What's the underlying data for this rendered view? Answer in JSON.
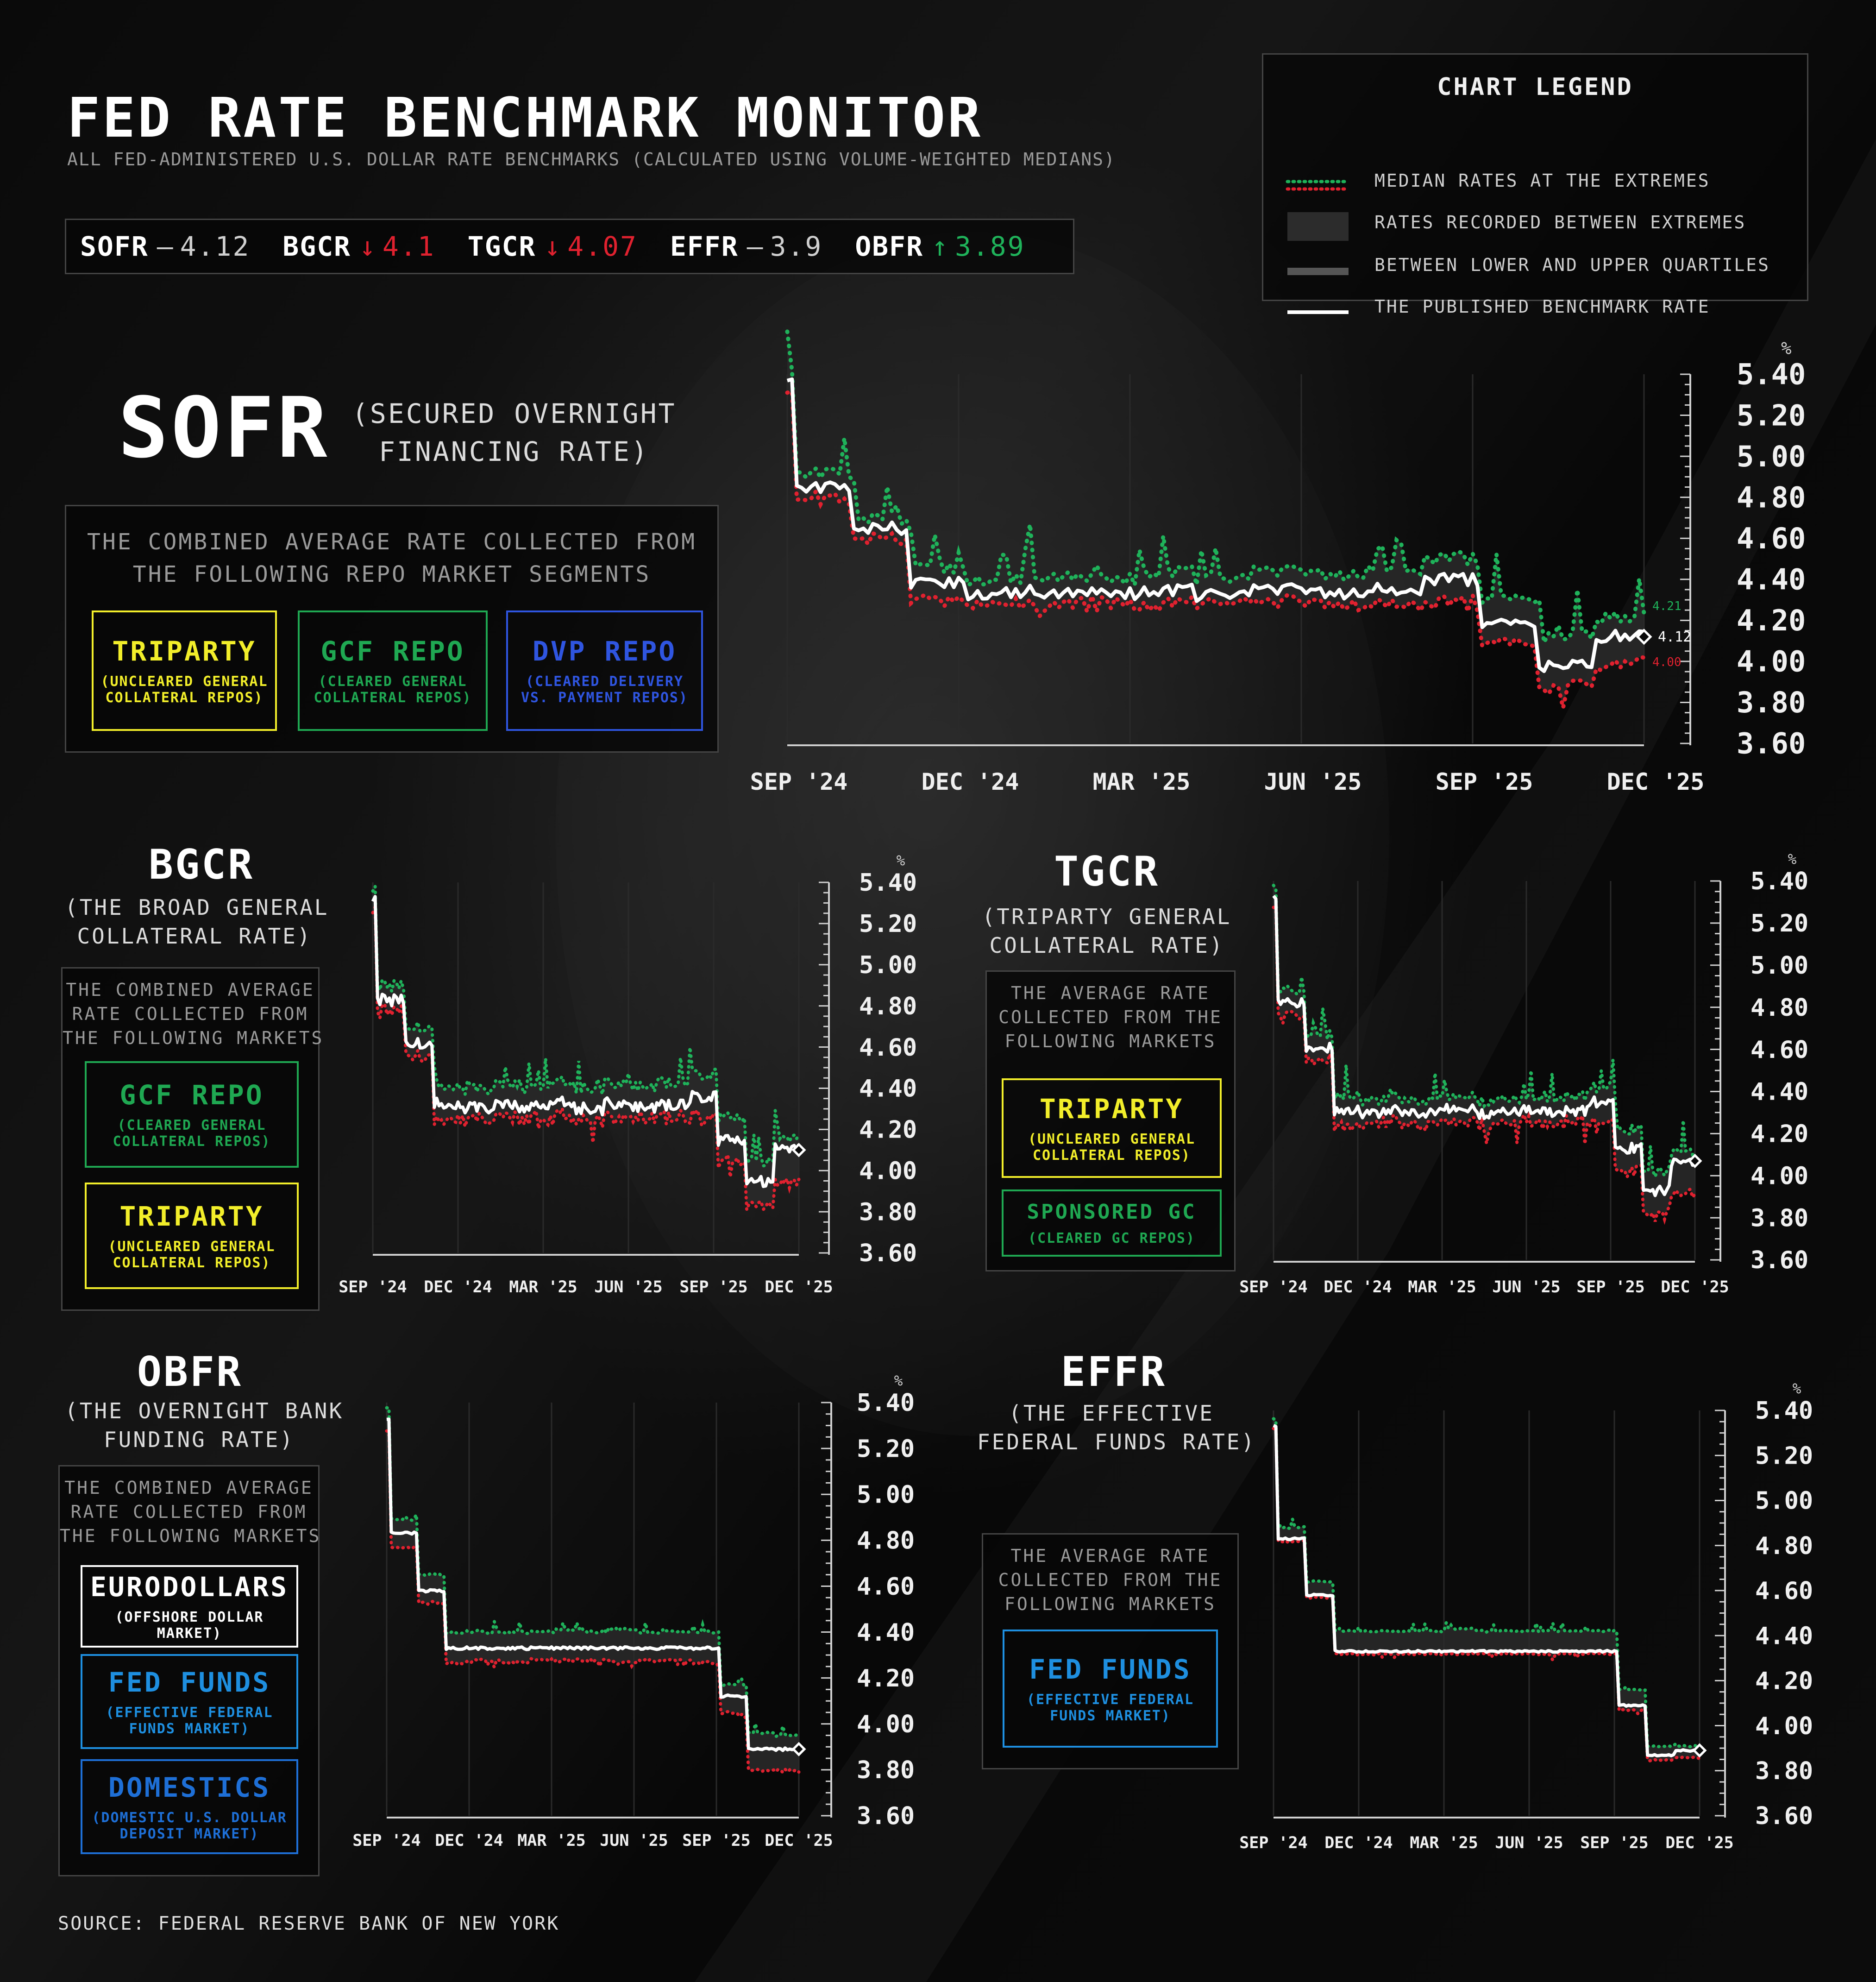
{
  "header": {
    "title": "FED RATE BENCHMARK MONITOR",
    "subtitle": "ALL FED-ADMINISTERED U.S. DOLLAR RATE BENCHMARKS (CALCULATED USING VOLUME-WEIGHTED MEDIANS)"
  },
  "ticker": [
    {
      "name": "SOFR",
      "arrow": "–",
      "value": "4.12",
      "color": "#cfcfcf"
    },
    {
      "name": "BGCR",
      "arrow": "↓",
      "value": "4.1",
      "color": "#e0212f"
    },
    {
      "name": "TGCR",
      "arrow": "↓",
      "value": "4.07",
      "color": "#e0212f"
    },
    {
      "name": "EFFR",
      "arrow": "–",
      "value": "3.9",
      "color": "#cfcfcf"
    },
    {
      "name": "OBFR",
      "arrow": "↑",
      "value": "3.89",
      "color": "#1fb25a"
    }
  ],
  "legend": {
    "title": "CHART LEGEND",
    "items": [
      {
        "key": "extremes",
        "label": "MEDIAN RATES AT THE EXTREMES"
      },
      {
        "key": "range",
        "label": "RATES RECORDED BETWEEN EXTREMES"
      },
      {
        "key": "quartiles",
        "label": "BETWEEN LOWER AND UPPER QUARTILES"
      },
      {
        "key": "published",
        "label": "THE PUBLISHED BENCHMARK RATE"
      }
    ]
  },
  "colors": {
    "upper": "#1fb25a",
    "lower": "#e0212f",
    "benchmark": "#ffffff",
    "triparty": "#f2ee2a",
    "gcf": "#1fa852",
    "dvp": "#2f55e0",
    "fedfunds": "#1e8fe0",
    "domestics": "#1e6fd6",
    "eurodollars": "#ffffff",
    "sponsored": "#1fa852"
  },
  "sections": {
    "sofr": {
      "name": "SOFR",
      "desc_lines": [
        "(SECURED OVERNIGHT",
        "FINANCING RATE)"
      ],
      "panel_lines": [
        "THE COMBINED AVERAGE RATE COLLECTED FROM",
        "THE FOLLOWING REPO MARKET SEGMENTS"
      ],
      "markets": [
        {
          "name": "TRIPARTY",
          "sub": [
            "(UNCLEARED GENERAL",
            "COLLATERAL REPOS)"
          ],
          "color": "#f2ee2a"
        },
        {
          "name": "GCF REPO",
          "sub": [
            "(CLEARED GENERAL",
            "COLLATERAL REPOS)"
          ],
          "color": "#1fa852"
        },
        {
          "name": "DVP REPO",
          "sub": [
            "(CLEARED DELIVERY",
            "VS. PAYMENT REPOS)"
          ],
          "color": "#2f55e0"
        }
      ]
    },
    "bgcr": {
      "name": "BGCR",
      "desc_lines": [
        "(THE BROAD GENERAL",
        "COLLATERAL RATE)"
      ],
      "panel_lines": [
        "THE COMBINED AVERAGE",
        "RATE COLLECTED FROM",
        "THE FOLLOWING MARKETS"
      ],
      "markets": [
        {
          "name": "GCF REPO",
          "sub": [
            "(CLEARED GENERAL",
            "COLLATERAL REPOS)"
          ],
          "color": "#1fa852"
        },
        {
          "name": "TRIPARTY",
          "sub": [
            "(UNCLEARED GENERAL",
            "COLLATERAL REPOS)"
          ],
          "color": "#f2ee2a"
        }
      ]
    },
    "tgcr": {
      "name": "TGCR",
      "desc_lines": [
        "(TRIPARTY GENERAL",
        "COLLATERAL RATE)"
      ],
      "panel_lines": [
        "THE AVERAGE RATE",
        "COLLECTED FROM THE",
        "FOLLOWING MARKETS"
      ],
      "markets": [
        {
          "name": "TRIPARTY",
          "sub": [
            "(UNCLEARED GENERAL",
            "COLLATERAL REPOS)"
          ],
          "color": "#f2ee2a"
        },
        {
          "name": "SPONSORED GC",
          "sub": [
            "(CLEARED GC REPOS)"
          ],
          "color": "#1fa852"
        }
      ]
    },
    "obfr": {
      "name": "OBFR",
      "desc_lines": [
        "(THE OVERNIGHT BANK",
        "FUNDING RATE)"
      ],
      "panel_lines": [
        "THE COMBINED AVERAGE",
        "RATE COLLECTED FROM",
        "THE FOLLOWING MARKETS"
      ],
      "markets": [
        {
          "name": "EURODOLLARS",
          "sub": [
            "(OFFSHORE DOLLAR",
            "MARKET)"
          ],
          "color": "#ffffff"
        },
        {
          "name": "FED FUNDS",
          "sub": [
            "(EFFECTIVE FEDERAL",
            "FUNDS MARKET)"
          ],
          "color": "#1e8fe0"
        },
        {
          "name": "DOMESTICS",
          "sub": [
            "(DOMESTIC U.S. DOLLAR",
            "DEPOSIT MARKET)"
          ],
          "color": "#1e6fd6"
        }
      ]
    },
    "effr": {
      "name": "EFFR",
      "desc_lines": [
        "(THE EFFECTIVE",
        "FEDERAL FUNDS RATE)"
      ],
      "panel_lines": [
        "THE AVERAGE RATE",
        "COLLECTED FROM THE",
        "FOLLOWING MARKETS"
      ],
      "markets": [
        {
          "name": "FED FUNDS",
          "sub": [
            "(EFFECTIVE FEDERAL",
            "FUNDS MARKET)"
          ],
          "color": "#1e8fe0"
        }
      ]
    }
  },
  "chart_data": [
    {
      "id": "sofr",
      "type": "line",
      "unit": "%",
      "x_ticks": [
        "SEP '24",
        "DEC '24",
        "MAR '25",
        "JUN '25",
        "SEP '25",
        "DEC '25"
      ],
      "ylim": [
        3.6,
        5.4
      ],
      "y_ticks": [
        "5.40",
        "5.20",
        "5.00",
        "4.80",
        "4.60",
        "4.40",
        "4.20",
        "4.00",
        "3.80",
        "3.60"
      ],
      "x": [
        "2024-09",
        "2024-10",
        "2024-11",
        "2024-12",
        "2025-01",
        "2025-02",
        "2025-03",
        "2025-04",
        "2025-05",
        "2025-06",
        "2025-07",
        "2025-08",
        "2025-09",
        "2025-10",
        "2025-11",
        "2025-12"
      ],
      "series": [
        {
          "values": [
            5.36,
            4.85,
            4.65,
            4.38,
            4.33,
            4.34,
            4.33,
            4.35,
            4.32,
            4.35,
            4.33,
            4.35,
            4.4,
            4.18,
            3.98,
            4.12
          ]
        },
        {
          "values": [
            5.4,
            4.92,
            4.7,
            4.45,
            4.4,
            4.42,
            4.4,
            4.44,
            4.4,
            4.44,
            4.42,
            4.45,
            4.5,
            4.3,
            4.12,
            4.21
          ]
        },
        {
          "values": [
            5.31,
            4.81,
            4.62,
            4.31,
            4.3,
            4.3,
            4.3,
            4.3,
            4.29,
            4.3,
            4.29,
            4.3,
            4.3,
            4.1,
            3.9,
            4.0
          ]
        }
      ],
      "end_labels": {
        "upper": "4.21",
        "benchmark": "4.12",
        "lower": "4.00"
      }
    },
    {
      "id": "bgcr",
      "type": "line",
      "unit": "%",
      "x_ticks": [
        "SEP '24",
        "DEC '24",
        "MAR '25",
        "JUN '25",
        "SEP '25",
        "DEC '25"
      ],
      "ylim": [
        3.6,
        5.4
      ],
      "y_ticks": [
        "5.40",
        "5.20",
        "5.00",
        "4.80",
        "4.60",
        "4.40",
        "4.20",
        "4.00",
        "3.80",
        "3.60"
      ],
      "x": [
        "2024-09",
        "2024-10",
        "2024-11",
        "2024-12",
        "2025-01",
        "2025-02",
        "2025-03",
        "2025-04",
        "2025-05",
        "2025-06",
        "2025-07",
        "2025-08",
        "2025-09",
        "2025-10",
        "2025-11",
        "2025-12"
      ],
      "series": [
        {
          "values": [
            5.33,
            4.83,
            4.62,
            4.33,
            4.31,
            4.32,
            4.31,
            4.33,
            4.3,
            4.33,
            4.31,
            4.32,
            4.36,
            4.15,
            3.95,
            4.1
          ]
        },
        {
          "values": [
            5.38,
            4.9,
            4.7,
            4.42,
            4.4,
            4.42,
            4.4,
            4.43,
            4.4,
            4.43,
            4.41,
            4.43,
            4.47,
            4.26,
            4.05,
            4.15
          ]
        },
        {
          "values": [
            5.3,
            4.79,
            4.58,
            4.27,
            4.27,
            4.28,
            4.27,
            4.28,
            4.26,
            4.28,
            4.27,
            4.28,
            4.28,
            4.06,
            3.85,
            3.95
          ]
        }
      ]
    },
    {
      "id": "tgcr",
      "type": "line",
      "unit": "%",
      "x_ticks": [
        "SEP '24",
        "DEC '24",
        "MAR '25",
        "JUN '25",
        "SEP '25",
        "DEC '25"
      ],
      "ylim": [
        3.6,
        5.4
      ],
      "y_ticks": [
        "5.40",
        "5.20",
        "5.00",
        "4.80",
        "4.60",
        "4.40",
        "4.20",
        "4.00",
        "3.80",
        "3.60"
      ],
      "x": [
        "2024-09",
        "2024-10",
        "2024-11",
        "2024-12",
        "2025-01",
        "2025-02",
        "2025-03",
        "2025-04",
        "2025-05",
        "2025-06",
        "2025-07",
        "2025-08",
        "2025-09",
        "2025-10",
        "2025-11",
        "2025-12"
      ],
      "series": [
        {
          "values": [
            5.32,
            4.82,
            4.61,
            4.31,
            4.3,
            4.31,
            4.3,
            4.32,
            4.29,
            4.31,
            4.3,
            4.31,
            4.35,
            4.13,
            3.93,
            4.07
          ]
        },
        {
          "values": [
            5.37,
            4.88,
            4.67,
            4.38,
            4.36,
            4.37,
            4.36,
            4.38,
            4.35,
            4.37,
            4.36,
            4.38,
            4.42,
            4.22,
            4.02,
            4.12
          ]
        },
        {
          "values": [
            5.29,
            4.78,
            4.57,
            4.25,
            4.26,
            4.27,
            4.26,
            4.27,
            4.25,
            4.27,
            4.26,
            4.27,
            4.27,
            4.04,
            3.83,
            3.93
          ]
        }
      ]
    },
    {
      "id": "obfr",
      "type": "line",
      "unit": "%",
      "x_ticks": [
        "SEP '24",
        "DEC '24",
        "MAR '25",
        "JUN '25",
        "SEP '25",
        "DEC '25"
      ],
      "ylim": [
        3.6,
        5.4
      ],
      "y_ticks": [
        "5.40",
        "5.20",
        "5.00",
        "4.80",
        "4.60",
        "4.40",
        "4.20",
        "4.00",
        "3.80",
        "3.60"
      ],
      "x": [
        "2024-09",
        "2024-10",
        "2024-11",
        "2024-12",
        "2025-01",
        "2025-02",
        "2025-03",
        "2025-04",
        "2025-05",
        "2025-06",
        "2025-07",
        "2025-08",
        "2025-09",
        "2025-10",
        "2025-11",
        "2025-12"
      ],
      "series": [
        {
          "values": [
            5.33,
            4.83,
            4.58,
            4.33,
            4.33,
            4.33,
            4.33,
            4.33,
            4.33,
            4.33,
            4.33,
            4.33,
            4.33,
            4.12,
            3.89,
            3.89
          ]
        },
        {
          "values": [
            5.38,
            4.89,
            4.65,
            4.4,
            4.4,
            4.4,
            4.4,
            4.41,
            4.4,
            4.41,
            4.4,
            4.4,
            4.4,
            4.17,
            3.96,
            3.95
          ]
        },
        {
          "values": [
            5.28,
            4.77,
            4.53,
            4.27,
            4.28,
            4.27,
            4.28,
            4.28,
            4.28,
            4.27,
            4.28,
            4.28,
            4.27,
            4.05,
            3.8,
            3.8
          ]
        }
      ]
    },
    {
      "id": "effr",
      "type": "line",
      "unit": "%",
      "x_ticks": [
        "SEP '24",
        "DEC '24",
        "MAR '25",
        "JUN '25",
        "SEP '25",
        "DEC '25"
      ],
      "ylim": [
        3.6,
        5.4
      ],
      "y_ticks": [
        "5.40",
        "5.20",
        "5.00",
        "4.80",
        "4.60",
        "4.40",
        "4.20",
        "4.00",
        "3.80",
        "3.60"
      ],
      "x": [
        "2024-09",
        "2024-10",
        "2024-11",
        "2024-12",
        "2025-01",
        "2025-02",
        "2025-03",
        "2025-04",
        "2025-05",
        "2025-06",
        "2025-07",
        "2025-08",
        "2025-09",
        "2025-10",
        "2025-11",
        "2025-12"
      ],
      "series": [
        {
          "values": [
            5.33,
            4.83,
            4.58,
            4.33,
            4.33,
            4.33,
            4.33,
            4.33,
            4.33,
            4.33,
            4.33,
            4.33,
            4.33,
            4.09,
            3.87,
            3.89
          ]
        },
        {
          "values": [
            5.36,
            4.88,
            4.64,
            4.42,
            4.42,
            4.42,
            4.42,
            4.43,
            4.42,
            4.42,
            4.42,
            4.42,
            4.42,
            4.16,
            3.91,
            3.91
          ]
        },
        {
          "values": [
            5.32,
            4.82,
            4.57,
            4.32,
            4.32,
            4.32,
            4.32,
            4.32,
            4.32,
            4.32,
            4.32,
            4.32,
            4.32,
            4.07,
            3.85,
            3.86
          ]
        }
      ]
    }
  ],
  "source": "SOURCE: FEDERAL RESERVE BANK OF NEW YORK"
}
